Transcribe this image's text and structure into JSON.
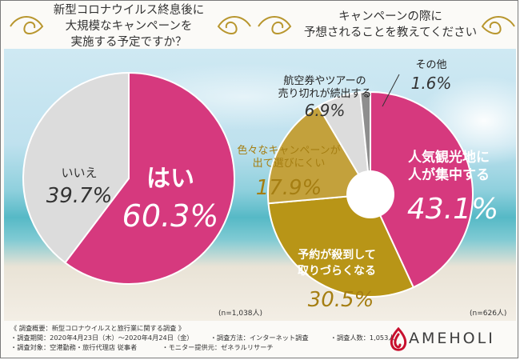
{
  "chart_data": [
    {
      "type": "pie",
      "title": "新型コロナウイルス終息後に大規模なキャンペーンを実施する予定ですか?",
      "title_lines": [
        "新型コロナウイルス終息後に",
        "大規模なキャンペーンを",
        "実施する予定ですか？"
      ],
      "slices": [
        {
          "label": "はい",
          "value": 60.3,
          "display": "60.3%",
          "color": "#d6397e"
        },
        {
          "label": "いいえ",
          "value": 39.7,
          "display": "39.7%",
          "color": "#dcdcdc"
        }
      ],
      "note": "(n=1,038人)"
    },
    {
      "type": "pie",
      "title": "キャンペーンの際に予想されることを教えてください",
      "title_lines": [
        "キャンペーンの際に",
        "予想されることを教えてください"
      ],
      "slices": [
        {
          "label": "人気観光地に人が集中する",
          "label_lines": [
            "人気観光地に",
            "人が集中する"
          ],
          "value": 43.1,
          "display": "43.1%",
          "color": "#d6397e"
        },
        {
          "label": "予約が殺到して取りづらくなる",
          "label_lines": [
            "予約が殺到して",
            "取りづらくなる"
          ],
          "value": 30.5,
          "display": "30.5%",
          "color": "#b89517"
        },
        {
          "label": "色々なキャンペーンが出て選びにくい",
          "label_lines": [
            "色々なキャンペーンが",
            "出て選びにくい"
          ],
          "value": 17.9,
          "display": "17.9%",
          "color": "#c3a13c"
        },
        {
          "label": "航空券やツアーの売り切れが続出する",
          "label_lines": [
            "航空券やツアーの",
            "売り切れが続出する"
          ],
          "value": 6.9,
          "display": "6.9%",
          "color": "#dcdcdc"
        },
        {
          "label": "その他",
          "label_lines": [
            "その他"
          ],
          "value": 1.6,
          "display": "1.6%",
          "color": "#8e8e8e"
        }
      ],
      "note": "(n=626人)"
    }
  ],
  "footer": {
    "line1": "《 調査概要：新型コロナウイルスと旅行業に関する調査 》",
    "line2a": "・調査期間：2020年4月23日（木）〜2020年4月24日（金）",
    "line2b": "・調査方法：インターネット調査",
    "line2c": "・調査人数：1,053人",
    "line3a": "・調査対象：空港勤務・旅行代理店 従事者",
    "line3b": "・モニター提供元：ゼネラルリサーチ"
  },
  "brand": {
    "name": "AMEHOLI",
    "color": "#c8102e"
  }
}
